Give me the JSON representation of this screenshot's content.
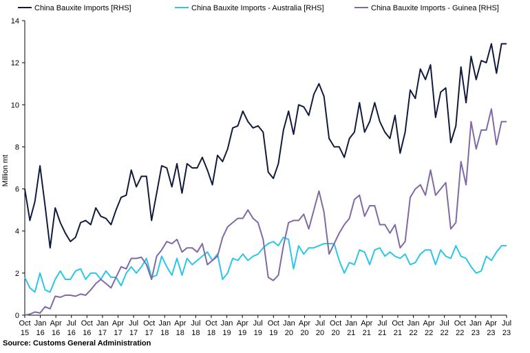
{
  "chart_data": {
    "type": "line",
    "title": "",
    "xlabel": "",
    "ylabel": "Million mt",
    "ylim": [
      0,
      14
    ],
    "yticks": [
      0,
      2,
      4,
      6,
      8,
      10,
      12,
      14
    ],
    "grid": false,
    "legend_position": "top",
    "source": "Source: Customs General Administration",
    "x_tick_labels": [
      {
        "month": "Oct",
        "year": "15"
      },
      {
        "month": "Jan",
        "year": "16"
      },
      {
        "month": "Apr",
        "year": "16"
      },
      {
        "month": "Jul",
        "year": "16"
      },
      {
        "month": "Oct",
        "year": "16"
      },
      {
        "month": "Jan",
        "year": "17"
      },
      {
        "month": "Apr",
        "year": "17"
      },
      {
        "month": "Jul",
        "year": "17"
      },
      {
        "month": "Oct",
        "year": "17"
      },
      {
        "month": "Jan",
        "year": "18"
      },
      {
        "month": "Apr",
        "year": "18"
      },
      {
        "month": "Jul",
        "year": "18"
      },
      {
        "month": "Oct",
        "year": "18"
      },
      {
        "month": "Jan",
        "year": "19"
      },
      {
        "month": "Apr",
        "year": "19"
      },
      {
        "month": "Jul",
        "year": "19"
      },
      {
        "month": "Oct",
        "year": "19"
      },
      {
        "month": "Jan",
        "year": "20"
      },
      {
        "month": "Apr",
        "year": "20"
      },
      {
        "month": "Jul",
        "year": "20"
      },
      {
        "month": "Oct",
        "year": "20"
      },
      {
        "month": "Jan",
        "year": "21"
      },
      {
        "month": "Apr",
        "year": "21"
      },
      {
        "month": "Jul",
        "year": "21"
      },
      {
        "month": "Oct",
        "year": "21"
      },
      {
        "month": "Jan",
        "year": "22"
      },
      {
        "month": "Apr",
        "year": "22"
      },
      {
        "month": "Jul",
        "year": "22"
      },
      {
        "month": "Oct",
        "year": "22"
      },
      {
        "month": "Jan",
        "year": "23"
      },
      {
        "month": "Apr",
        "year": "23"
      },
      {
        "month": "Jul",
        "year": "23"
      }
    ],
    "series": [
      {
        "name": "China Bauxite Imports [RHS]",
        "color": "#0f1a3c",
        "values": [
          6.0,
          4.5,
          5.4,
          7.1,
          5.2,
          3.2,
          5.1,
          4.4,
          3.9,
          3.5,
          3.7,
          4.4,
          4.5,
          4.3,
          5.1,
          4.7,
          4.6,
          4.3,
          5.0,
          5.6,
          5.7,
          6.9,
          6.1,
          6.6,
          6.6,
          4.5,
          5.8,
          7.1,
          7.0,
          6.1,
          7.2,
          5.8,
          7.2,
          7.0,
          7.0,
          7.5,
          6.9,
          6.2,
          7.6,
          7.3,
          7.9,
          8.9,
          9.0,
          9.7,
          9.2,
          8.9,
          9.0,
          8.7,
          6.8,
          6.5,
          7.2,
          8.8,
          9.7,
          8.6,
          10.0,
          9.9,
          9.5,
          10.5,
          11.0,
          10.4,
          8.4,
          8.0,
          8.0,
          7.5,
          8.4,
          8.7,
          10.1,
          8.7,
          9.2,
          10.1,
          9.2,
          8.7,
          8.4,
          9.5,
          7.7,
          8.7,
          10.7,
          10.3,
          11.7,
          11.2,
          11.9,
          9.4,
          10.6,
          10.8,
          8.2,
          9.0,
          11.8,
          10.1,
          12.3,
          11.2,
          12.1,
          12.0,
          12.9,
          11.5,
          12.9,
          12.9
        ]
      },
      {
        "name": "China Bauxite Imports - Australia [RHS]",
        "color": "#29c6ea",
        "values": [
          1.8,
          1.3,
          1.1,
          2.0,
          1.2,
          1.1,
          1.7,
          2.1,
          1.7,
          1.7,
          2.1,
          2.2,
          1.7,
          2.0,
          2.0,
          1.7,
          2.1,
          1.8,
          1.8,
          1.4,
          2.0,
          2.3,
          2.0,
          2.3,
          2.7,
          1.8,
          1.9,
          2.8,
          2.3,
          1.9,
          2.7,
          1.9,
          2.7,
          2.4,
          2.6,
          2.8,
          3.0,
          2.6,
          2.9,
          1.7,
          2.0,
          2.7,
          2.6,
          2.9,
          2.6,
          2.8,
          2.9,
          3.2,
          3.4,
          3.5,
          3.3,
          3.7,
          3.6,
          2.2,
          3.3,
          2.9,
          3.2,
          3.2,
          3.3,
          3.4,
          3.4,
          3.4,
          2.6,
          2.0,
          2.5,
          2.4,
          3.1,
          3.0,
          2.4,
          3.1,
          3.2,
          2.8,
          3.0,
          2.8,
          2.7,
          2.9,
          2.4,
          2.5,
          2.9,
          3.1,
          3.1,
          2.4,
          3.1,
          2.8,
          2.7,
          3.3,
          2.8,
          2.7,
          2.3,
          2.0,
          2.1,
          2.8,
          2.6,
          3.0,
          3.3,
          3.3
        ]
      },
      {
        "name": "China Bauxite Imports - Guinea [RHS]",
        "color": "#8068a5",
        "values": [
          0.0,
          0.05,
          0.15,
          0.1,
          0.4,
          0.3,
          0.9,
          0.85,
          0.95,
          0.95,
          0.9,
          1.0,
          0.95,
          1.2,
          1.5,
          1.7,
          1.5,
          1.3,
          1.8,
          2.3,
          2.2,
          2.7,
          2.7,
          2.75,
          2.4,
          1.7,
          2.8,
          3.1,
          3.5,
          3.4,
          3.6,
          3.0,
          3.2,
          3.2,
          3.0,
          3.4,
          2.4,
          2.6,
          2.8,
          3.7,
          4.2,
          4.4,
          4.6,
          4.6,
          5.0,
          4.6,
          4.4,
          3.6,
          1.8,
          1.65,
          1.9,
          3.3,
          4.4,
          4.5,
          4.5,
          4.8,
          4.1,
          5.0,
          5.9,
          4.9,
          2.9,
          3.4,
          3.9,
          4.3,
          4.6,
          5.5,
          5.7,
          4.7,
          5.2,
          5.2,
          4.3,
          4.3,
          3.9,
          4.3,
          3.2,
          3.5,
          5.6,
          6.0,
          6.2,
          5.7,
          6.9,
          5.7,
          6.0,
          6.3,
          4.1,
          4.4,
          7.3,
          6.2,
          9.2,
          7.9,
          8.8,
          8.8,
          9.8,
          8.1,
          9.2,
          9.2
        ]
      }
    ]
  }
}
